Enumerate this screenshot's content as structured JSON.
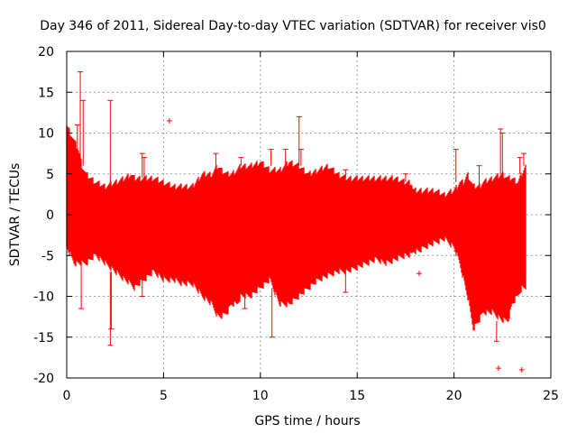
{
  "chart_data": {
    "type": "scatter",
    "title": "Day 346 of 2011, Sidereal Day-to-day VTEC variation (SDTVAR) for receiver vis0",
    "xlabel": "GPS time / hours",
    "ylabel": "SDTVAR / TECUs",
    "xlim": [
      0,
      25
    ],
    "ylim": [
      -20,
      20
    ],
    "xticks": [
      0,
      5,
      10,
      15,
      20,
      25
    ],
    "yticks": [
      -20,
      -15,
      -10,
      -5,
      0,
      5,
      10,
      15,
      20
    ],
    "grid": true,
    "series": [
      {
        "name": "SDTVAR",
        "color": "#ff0000",
        "marker": "+",
        "band_x": [
          0.0,
          0.2,
          0.4,
          0.6,
          0.8,
          1.0,
          1.5,
          2.0,
          2.5,
          3.0,
          3.3,
          3.5,
          4.0,
          4.5,
          5.0,
          5.5,
          6.0,
          6.5,
          7.0,
          7.5,
          7.8,
          8.0,
          8.3,
          8.5,
          8.8,
          9.0,
          9.5,
          10.0,
          10.5,
          11.0,
          11.5,
          12.0,
          12.5,
          13.0,
          13.5,
          14.0,
          14.5,
          15.0,
          15.5,
          16.0,
          16.5,
          17.0,
          17.5,
          17.8,
          17.9,
          18.2,
          18.5,
          19.0,
          19.5,
          20.0,
          20.3,
          20.5,
          20.7,
          21.0,
          21.3,
          21.5,
          22.0,
          22.5,
          22.8,
          23.0,
          23.3,
          23.5,
          23.7
        ],
        "band_upper": [
          11,
          10,
          9,
          8,
          6,
          5,
          4,
          3.5,
          4,
          4.5,
          5,
          4.5,
          4.5,
          4.5,
          4,
          3.5,
          3.5,
          3.5,
          5,
          5,
          6,
          5.5,
          5,
          5,
          5.5,
          6,
          6,
          6.5,
          5.5,
          5.5,
          6.5,
          6,
          5,
          5.5,
          6,
          5,
          4.5,
          4.5,
          4.5,
          4.5,
          4.5,
          4.5,
          4,
          4,
          3,
          3,
          3,
          3,
          2.5,
          3,
          4,
          4,
          5,
          3.5,
          3.5,
          4,
          4.5,
          5,
          4.5,
          4.5,
          4,
          5,
          6
        ],
        "band_lower": [
          -4,
          -5,
          -6,
          -6,
          -6,
          -6,
          -5,
          -6,
          -7,
          -8,
          -8.5,
          -9,
          -8,
          -7,
          -8,
          -8,
          -8.5,
          -8.5,
          -10,
          -11,
          -12.5,
          -12.5,
          -12,
          -11,
          -11,
          -10,
          -10,
          -9,
          -8,
          -11,
          -11,
          -10,
          -9,
          -8,
          -7.5,
          -7,
          -7,
          -6.5,
          -6,
          -5.5,
          -6,
          -5.5,
          -5,
          -5,
          -4.5,
          -4.5,
          -4,
          -3.5,
          -3,
          -4,
          -6,
          -8,
          -10,
          -14,
          -13,
          -12,
          -12,
          -13,
          -13,
          -11,
          -10,
          -9,
          -9
        ]
      }
    ],
    "spikes": [
      {
        "x": 0.7,
        "y1": 6,
        "y2": 17.5
      },
      {
        "x": 0.75,
        "y1": -6,
        "y2": -11.5
      },
      {
        "x": 0.55,
        "y1": 6,
        "y2": 11
      },
      {
        "x": 0.85,
        "y1": 6,
        "y2": 14
      },
      {
        "x": 2.25,
        "y1": 4,
        "y2": 14
      },
      {
        "x": 2.25,
        "y1": -7,
        "y2": -16
      },
      {
        "x": 2.3,
        "y1": -7,
        "y2": -14
      },
      {
        "x": 3.9,
        "y1": 4.5,
        "y2": 7.5
      },
      {
        "x": 3.9,
        "y1": -8,
        "y2": -10
      },
      {
        "x": 4.0,
        "y1": 4.5,
        "y2": 7
      },
      {
        "x": 7.7,
        "y1": 5,
        "y2": 7.5
      },
      {
        "x": 9.0,
        "y1": 6,
        "y2": 7
      },
      {
        "x": 9.2,
        "y1": -10,
        "y2": -11.5
      },
      {
        "x": 10.6,
        "y1": -9,
        "y2": -15
      },
      {
        "x": 10.55,
        "y1": 6,
        "y2": 8
      },
      {
        "x": 11.3,
        "y1": 6,
        "y2": 8
      },
      {
        "x": 12.0,
        "y1": 6,
        "y2": 12
      },
      {
        "x": 12.1,
        "y1": 6,
        "y2": 8
      },
      {
        "x": 14.4,
        "y1": -6.5,
        "y2": -9.5
      },
      {
        "x": 14.4,
        "y1": 4.5,
        "y2": 5.5
      },
      {
        "x": 17.5,
        "y1": 4,
        "y2": 5
      },
      {
        "x": 20.1,
        "y1": 4,
        "y2": 8
      },
      {
        "x": 21.3,
        "y1": 3.5,
        "y2": 6
      },
      {
        "x": 22.4,
        "y1": 5,
        "y2": 10.5
      },
      {
        "x": 22.5,
        "y1": 5,
        "y2": 10
      },
      {
        "x": 22.2,
        "y1": -13,
        "y2": -15.5
      },
      {
        "x": 23.4,
        "y1": 5,
        "y2": 7
      },
      {
        "x": 23.6,
        "y1": 6,
        "y2": 7.5
      }
    ],
    "outliers": [
      {
        "x": 5.3,
        "y": 11.5
      },
      {
        "x": 18.2,
        "y": -7.2
      },
      {
        "x": 23.5,
        "y": -19
      },
      {
        "x": 22.3,
        "y": -18.8
      }
    ],
    "colors": {
      "data": "#ff0000",
      "grid": "#a0a0a0",
      "axis": "#000000",
      "background": "#ffffff"
    }
  }
}
